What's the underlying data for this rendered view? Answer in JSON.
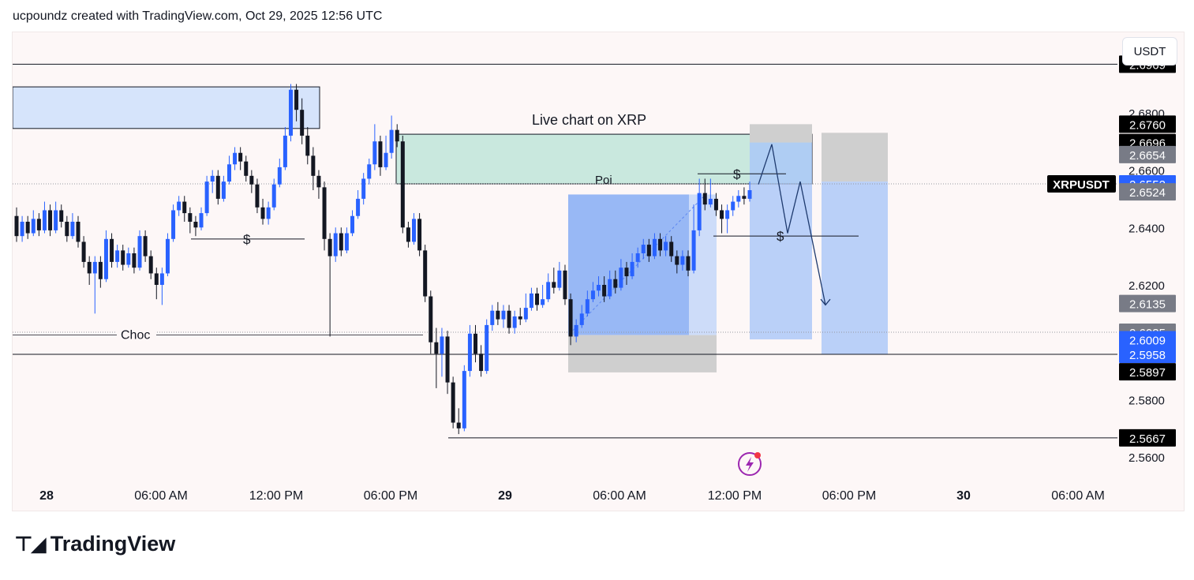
{
  "header": {
    "title": "ucpoundz created with TradingView.com, Oct 29, 2025 12:56 UTC"
  },
  "footer": {
    "brand": "TradingView"
  },
  "currency_button": "USDT",
  "colors": {
    "bull": "#2962ff",
    "bear": "#131722",
    "zone_supply": "#d6e4fb",
    "poi_fill": "#c9e8de",
    "target_blue": "#a9c6f7",
    "stop_grey": "#cfcfcf",
    "label_dark": "#000000",
    "label_blue": "#2962ff",
    "label_grey": "#787b86"
  },
  "chart_data": {
    "type": "candlestick",
    "symbol": "XRPUSDT",
    "ylim": [
      2.554,
      2.708
    ],
    "y_ticks": [
      "2.7000",
      "2.6800",
      "2.6600",
      "2.6400",
      "2.6200",
      "2.6000",
      "2.5800",
      "2.5600"
    ],
    "x_ticks": [
      "28",
      "06:00 AM",
      "12:00 PM",
      "06:00 PM",
      "29",
      "06:00 AM",
      "12:00 PM",
      "06:00 PM",
      "30",
      "06:00 AM"
    ],
    "x_tick_bold": [
      true,
      false,
      false,
      false,
      true,
      false,
      false,
      false,
      true,
      false
    ],
    "price_labels": [
      {
        "text": "2.6969",
        "price": 2.6969,
        "style": "dark"
      },
      {
        "text": "2.6760",
        "price": 2.676,
        "style": "dark"
      },
      {
        "text": "2.6696",
        "price": 2.6696,
        "style": "dark"
      },
      {
        "text": "2.6654",
        "price": 2.6654,
        "style": "grey"
      },
      {
        "text": "2.6552",
        "price": 2.6552,
        "style": "blue"
      },
      {
        "text": "2.6524",
        "price": 2.6524,
        "style": "grey"
      },
      {
        "text": "2.6135",
        "price": 2.6135,
        "style": "grey"
      },
      {
        "text": "2.6035",
        "price": 2.6035,
        "style": "grey"
      },
      {
        "text": "2.6009",
        "price": 2.6009,
        "style": "blue"
      },
      {
        "text": "2.5958",
        "price": 2.5958,
        "style": "blue"
      },
      {
        "text": "2.5897",
        "price": 2.5897,
        "style": "dark"
      },
      {
        "text": "2.5667",
        "price": 2.5667,
        "style": "dark"
      }
    ],
    "symbol_label": "XRPUSDT",
    "annotations": {
      "title": "Live chart on XRP",
      "poi": "Poi",
      "choc": "Choc",
      "liquidity": "$"
    },
    "candles": [
      [
        2.644,
        2.637,
        2.647,
        2.635
      ],
      [
        2.637,
        2.642,
        2.644,
        2.635
      ],
      [
        2.642,
        2.638,
        2.644,
        2.636
      ],
      [
        2.638,
        2.643,
        2.646,
        2.637
      ],
      [
        2.643,
        2.639,
        2.645,
        2.637
      ],
      [
        2.639,
        2.646,
        2.649,
        2.638
      ],
      [
        2.646,
        2.639,
        2.648,
        2.637
      ],
      [
        2.639,
        2.646,
        2.649,
        2.638
      ],
      [
        2.646,
        2.642,
        2.648,
        2.64
      ],
      [
        2.642,
        2.637,
        2.644,
        2.635
      ],
      [
        2.637,
        2.642,
        2.645,
        2.636
      ],
      [
        2.642,
        2.635,
        2.644,
        2.633
      ],
      [
        2.635,
        2.628,
        2.637,
        2.626
      ],
      [
        2.628,
        2.624,
        2.63,
        2.62
      ],
      [
        2.624,
        2.628,
        2.63,
        2.61
      ],
      [
        2.628,
        2.622,
        2.63,
        2.619
      ],
      [
        2.622,
        2.636,
        2.639,
        2.621
      ],
      [
        2.636,
        2.628,
        2.638,
        2.626
      ],
      [
        2.628,
        2.632,
        2.634,
        2.626
      ],
      [
        2.632,
        2.627,
        2.634,
        2.625
      ],
      [
        2.627,
        2.631,
        2.633,
        2.626
      ],
      [
        2.631,
        2.626,
        2.633,
        2.624
      ],
      [
        2.626,
        2.637,
        2.639,
        2.625
      ],
      [
        2.637,
        2.63,
        2.639,
        2.628
      ],
      [
        2.63,
        2.624,
        2.632,
        2.622
      ],
      [
        2.624,
        2.62,
        2.626,
        2.615
      ],
      [
        2.62,
        2.624,
        2.626,
        2.613
      ],
      [
        2.624,
        2.636,
        2.638,
        2.623
      ],
      [
        2.636,
        2.646,
        2.648,
        2.635
      ],
      [
        2.646,
        2.649,
        2.651,
        2.644
      ],
      [
        2.649,
        2.645,
        2.651,
        2.642
      ],
      [
        2.645,
        2.642,
        2.647,
        2.638
      ],
      [
        2.642,
        2.64,
        2.644,
        2.637
      ],
      [
        2.64,
        2.645,
        2.647,
        2.639
      ],
      [
        2.645,
        2.656,
        2.658,
        2.644
      ],
      [
        2.656,
        2.658,
        2.66,
        2.652
      ],
      [
        2.658,
        2.65,
        2.66,
        2.648
      ],
      [
        2.65,
        2.656,
        2.658,
        2.649
      ],
      [
        2.656,
        2.662,
        2.665,
        2.655
      ],
      [
        2.662,
        2.666,
        2.668,
        2.66
      ],
      [
        2.666,
        2.663,
        2.668,
        2.66
      ],
      [
        2.663,
        2.658,
        2.665,
        2.656
      ],
      [
        2.658,
        2.655,
        2.66,
        2.652
      ],
      [
        2.655,
        2.647,
        2.657,
        2.645
      ],
      [
        2.647,
        2.643,
        2.65,
        2.641
      ],
      [
        2.643,
        2.647,
        2.649,
        2.641
      ],
      [
        2.647,
        2.655,
        2.657,
        2.646
      ],
      [
        2.655,
        2.661,
        2.664,
        2.654
      ],
      [
        2.661,
        2.672,
        2.675,
        2.66
      ],
      [
        2.672,
        2.688,
        2.69,
        2.67
      ],
      [
        2.688,
        2.681,
        2.69,
        2.677
      ],
      [
        2.681,
        2.672,
        2.685,
        2.669
      ],
      [
        2.672,
        2.665,
        2.675,
        2.662
      ],
      [
        2.665,
        2.658,
        2.668,
        2.653
      ],
      [
        2.658,
        2.654,
        2.66,
        2.65
      ],
      [
        2.654,
        2.636,
        2.656,
        2.632
      ],
      [
        2.636,
        2.63,
        2.638,
        2.602
      ],
      [
        2.63,
        2.638,
        2.64,
        2.628
      ],
      [
        2.638,
        2.632,
        2.64,
        2.63
      ],
      [
        2.632,
        2.638,
        2.64,
        2.631
      ],
      [
        2.638,
        2.644,
        2.646,
        2.637
      ],
      [
        2.644,
        2.65,
        2.653,
        2.643
      ],
      [
        2.65,
        2.657,
        2.659,
        2.648
      ],
      [
        2.657,
        2.662,
        2.664,
        2.655
      ],
      [
        2.662,
        2.67,
        2.676,
        2.66
      ],
      [
        2.67,
        2.661,
        2.672,
        2.658
      ],
      [
        2.661,
        2.666,
        2.672,
        2.66
      ],
      [
        2.666,
        2.674,
        2.679,
        2.664
      ],
      [
        2.674,
        2.67,
        2.676,
        2.668
      ],
      [
        2.67,
        2.64,
        2.672,
        2.638
      ],
      [
        2.64,
        2.635,
        2.642,
        2.633
      ],
      [
        2.635,
        2.643,
        2.645,
        2.634
      ],
      [
        2.643,
        2.632,
        2.645,
        2.63
      ],
      [
        2.632,
        2.616,
        2.634,
        2.614
      ],
      [
        2.616,
        2.6,
        2.618,
        2.596
      ],
      [
        2.6,
        2.596,
        2.605,
        2.584
      ],
      [
        2.596,
        2.602,
        2.605,
        2.588
      ],
      [
        2.602,
        2.586,
        2.604,
        2.582
      ],
      [
        2.586,
        2.572,
        2.588,
        2.57
      ],
      [
        2.572,
        2.57,
        2.577,
        2.568
      ],
      [
        2.57,
        2.59,
        2.592,
        2.569
      ],
      [
        2.59,
        2.603,
        2.606,
        2.588
      ],
      [
        2.603,
        2.596,
        2.606,
        2.593
      ],
      [
        2.596,
        2.59,
        2.599,
        2.588
      ],
      [
        2.59,
        2.606,
        2.608,
        2.589
      ],
      [
        2.606,
        2.611,
        2.613,
        2.604
      ],
      [
        2.611,
        2.608,
        2.614,
        2.606
      ],
      [
        2.608,
        2.611,
        2.613,
        2.605
      ],
      [
        2.611,
        2.605,
        2.613,
        2.603
      ],
      [
        2.605,
        2.609,
        2.611,
        2.603
      ],
      [
        2.609,
        2.608,
        2.612,
        2.606
      ],
      [
        2.608,
        2.612,
        2.617,
        2.607
      ],
      [
        2.612,
        2.617,
        2.619,
        2.611
      ],
      [
        2.617,
        2.613,
        2.619,
        2.611
      ],
      [
        2.613,
        2.615,
        2.62,
        2.612
      ],
      [
        2.615,
        2.621,
        2.624,
        2.614
      ],
      [
        2.621,
        2.619,
        2.626,
        2.617
      ],
      [
        2.619,
        2.625,
        2.628,
        2.618
      ],
      [
        2.625,
        2.615,
        2.627,
        2.613
      ],
      [
        2.615,
        2.602,
        2.617,
        2.599
      ],
      [
        2.602,
        2.606,
        2.608,
        2.6
      ],
      [
        2.606,
        2.61,
        2.613,
        2.605
      ],
      [
        2.61,
        2.615,
        2.618,
        2.609
      ],
      [
        2.615,
        2.618,
        2.621,
        2.614
      ],
      [
        2.618,
        2.62,
        2.623,
        2.616
      ],
      [
        2.62,
        2.616,
        2.623,
        2.614
      ],
      [
        2.616,
        2.622,
        2.625,
        2.615
      ],
      [
        2.622,
        2.619,
        2.625,
        2.617
      ],
      [
        2.619,
        2.626,
        2.629,
        2.618
      ],
      [
        2.626,
        2.623,
        2.628,
        2.62
      ],
      [
        2.623,
        2.628,
        2.631,
        2.622
      ],
      [
        2.628,
        2.631,
        2.633,
        2.626
      ],
      [
        2.631,
        2.634,
        2.636,
        2.629
      ],
      [
        2.634,
        2.63,
        2.636,
        2.628
      ],
      [
        2.63,
        2.636,
        2.638,
        2.629
      ],
      [
        2.636,
        2.632,
        2.638,
        2.63
      ],
      [
        2.632,
        2.635,
        2.637,
        2.63
      ],
      [
        2.635,
        2.63,
        2.637,
        2.628
      ],
      [
        2.63,
        2.627,
        2.632,
        2.624
      ],
      [
        2.627,
        2.63,
        2.632,
        2.625
      ],
      [
        2.63,
        2.625,
        2.632,
        2.623
      ],
      [
        2.625,
        2.639,
        2.648,
        2.624
      ],
      [
        2.639,
        2.652,
        2.657,
        2.637
      ],
      [
        2.652,
        2.648,
        2.657,
        2.646
      ],
      [
        2.648,
        2.65,
        2.657,
        2.647
      ],
      [
        2.65,
        2.646,
        2.652,
        2.644
      ],
      [
        2.646,
        2.643,
        2.648,
        2.638
      ],
      [
        2.643,
        2.646,
        2.648,
        2.638
      ],
      [
        2.646,
        2.649,
        2.651,
        2.644
      ],
      [
        2.649,
        2.651,
        2.653,
        2.647
      ],
      [
        2.651,
        2.65,
        2.654,
        2.648
      ],
      [
        2.65,
        2.653,
        2.656,
        2.649
      ]
    ]
  }
}
